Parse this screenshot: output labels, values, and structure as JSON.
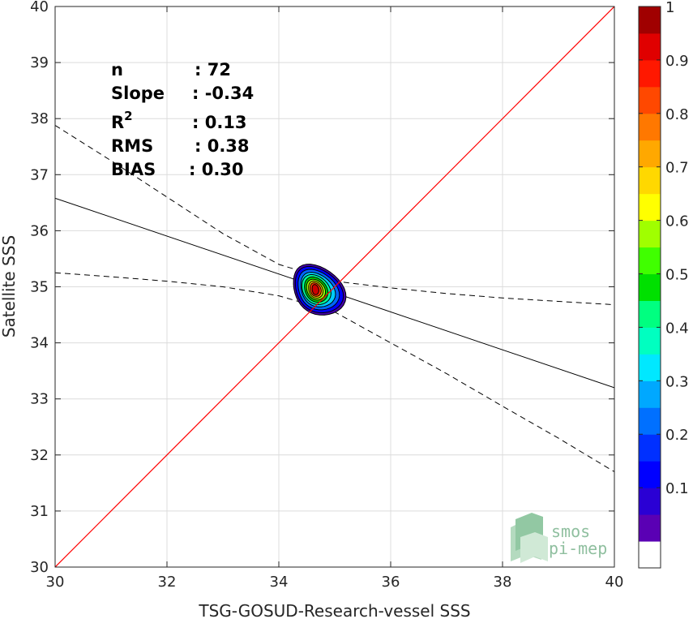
{
  "chart_data": {
    "type": "heatmap",
    "xlabel": "TSG-GOSUD-Research-vessel SSS",
    "ylabel": "Satellite SSS",
    "xlim": [
      30,
      40
    ],
    "ylim": [
      30,
      40
    ],
    "xticks": [
      30,
      32,
      34,
      36,
      38,
      40
    ],
    "yticks": [
      30,
      31,
      32,
      33,
      34,
      35,
      36,
      37,
      38,
      39,
      40
    ],
    "grid": true,
    "stats": {
      "n": {
        "label": "n",
        "value": ": 72"
      },
      "slope": {
        "label": "Slope",
        "value": ": -0.34"
      },
      "r2": {
        "label": "R",
        "sup": "2",
        "value": ": 0.13"
      },
      "rms": {
        "label": "RMS",
        "value": ": 0.38"
      },
      "bias": {
        "label": "BIAS",
        "value": ": 0.30"
      }
    },
    "identity_line": {
      "points": [
        [
          30,
          30
        ],
        [
          40,
          40
        ]
      ],
      "color": "#ff0000"
    },
    "regression_line": {
      "points": [
        [
          30,
          36.58
        ],
        [
          40,
          33.2
        ]
      ],
      "color": "#000000"
    },
    "confidence_upper": [
      [
        30,
        37.88
      ],
      [
        31,
        37.25
      ],
      [
        32,
        36.6
      ],
      [
        33,
        35.95
      ],
      [
        34,
        35.4
      ],
      [
        35,
        35.1
      ],
      [
        36,
        34.98
      ],
      [
        37,
        34.88
      ],
      [
        38,
        34.8
      ],
      [
        39,
        34.74
      ],
      [
        40,
        34.68
      ]
    ],
    "confidence_lower": [
      [
        30,
        35.25
      ],
      [
        31,
        35.18
      ],
      [
        32,
        35.1
      ],
      [
        33,
        35.0
      ],
      [
        34,
        34.84
      ],
      [
        35,
        34.55
      ],
      [
        36,
        34.0
      ],
      [
        37,
        33.45
      ],
      [
        38,
        32.87
      ],
      [
        39,
        32.3
      ],
      [
        40,
        31.7
      ]
    ],
    "density_center": [
      34.65,
      34.95
    ],
    "density_levels": [
      {
        "level": 0.05,
        "rx": 0.47,
        "ry": 0.44,
        "color": "#4400aa"
      },
      {
        "level": 0.15,
        "rx": 0.43,
        "ry": 0.4,
        "color": "#0000ff"
      },
      {
        "level": 0.25,
        "rx": 0.37,
        "ry": 0.35,
        "color": "#0066ff"
      },
      {
        "level": 0.35,
        "rx": 0.31,
        "ry": 0.3,
        "color": "#00ccff"
      },
      {
        "level": 0.45,
        "rx": 0.26,
        "ry": 0.26,
        "color": "#00ff99"
      },
      {
        "level": 0.55,
        "rx": 0.21,
        "ry": 0.22,
        "color": "#00cc00"
      },
      {
        "level": 0.65,
        "rx": 0.17,
        "ry": 0.18,
        "color": "#99ff00"
      },
      {
        "level": 0.75,
        "rx": 0.13,
        "ry": 0.15,
        "color": "#ffcc00"
      },
      {
        "level": 0.85,
        "rx": 0.1,
        "ry": 0.12,
        "color": "#ff3300"
      },
      {
        "level": 0.95,
        "rx": 0.06,
        "ry": 0.09,
        "color": "#cc0000"
      }
    ],
    "colorbar": {
      "ticks": [
        "0.1",
        "0.2",
        "0.3",
        "0.4",
        "0.5",
        "0.6",
        "0.7",
        "0.8",
        "0.9",
        "1"
      ],
      "tick_values": [
        0.1,
        0.2,
        0.3,
        0.4,
        0.5,
        0.6,
        0.7,
        0.8,
        0.9,
        1.0
      ],
      "colors": [
        "#ffffff",
        "#5a00b4",
        "#2a00d4",
        "#0000ff",
        "#0030ff",
        "#0070ff",
        "#00a8ff",
        "#00e8ff",
        "#00ffc0",
        "#00ff80",
        "#00e000",
        "#40ff00",
        "#a0ff00",
        "#ffff00",
        "#ffd800",
        "#ffa800",
        "#ff7800",
        "#ff4800",
        "#ff1800",
        "#e00000",
        "#a00000"
      ]
    }
  },
  "logo": {
    "line1": "smos",
    "line2": "pi-mep"
  }
}
